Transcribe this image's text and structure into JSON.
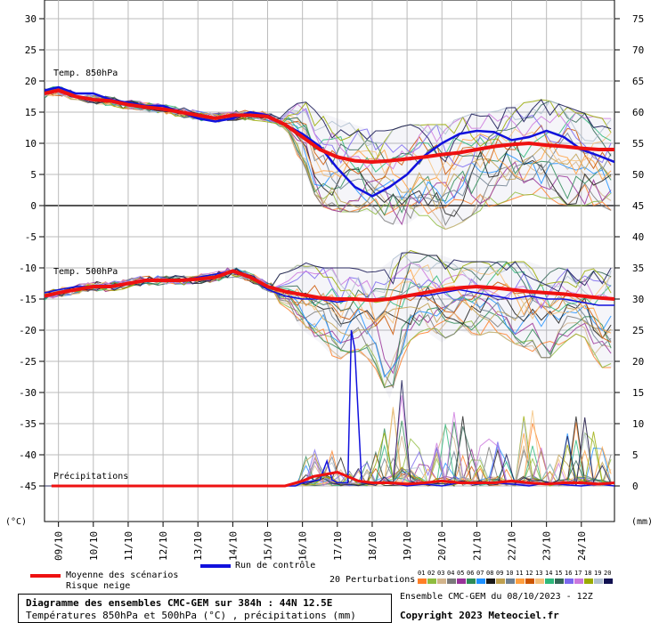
{
  "chart_data": {
    "type": "line",
    "title": "Diagramme des ensembles CMC-GEM sur 384h : 44N 12.5E",
    "subtitle": "Températures 850hPa et 500hPa (°C) , précipitations (mm)",
    "left_unit": "(°C)",
    "right_unit": "(mm)",
    "left_ticks": [
      30,
      25,
      20,
      15,
      10,
      5,
      0,
      -5,
      -10,
      -15,
      -20,
      -25,
      -30,
      -35,
      -40,
      -45
    ],
    "right_ticks": [
      75,
      70,
      65,
      60,
      55,
      50,
      45,
      40,
      35,
      30,
      25,
      20,
      15,
      10,
      5,
      0
    ],
    "x_ticks": [
      "09/10",
      "10/10",
      "11/10",
      "12/10",
      "13/10",
      "14/10",
      "15/10",
      "16/10",
      "17/10",
      "18/10",
      "19/10",
      "20/10",
      "21/10",
      "22/10",
      "23/10",
      "24/10"
    ],
    "x_range": [
      8.6,
      24.95
    ],
    "y_range": [
      -50,
      30
    ],
    "panel_labels": {
      "t850": "Temp. 850hPa",
      "t500": "Temp. 500hPa",
      "precip": "Précipitations"
    },
    "legend": {
      "mean": "Moyenne des scénarios",
      "snow": "Risque neige",
      "control": "Run de contrôle",
      "perturbations": "20 Perturbations",
      "perturbation_ids": [
        "01",
        "02",
        "03",
        "04",
        "05",
        "06",
        "07",
        "08",
        "09",
        "10",
        "11",
        "12",
        "13",
        "14",
        "15",
        "16",
        "17",
        "18",
        "19",
        "20"
      ]
    },
    "colors": {
      "mean": "#ee1111",
      "control": "#1111dd",
      "grid": "#bbbbbb",
      "zero_line": "#555555",
      "perturbations": [
        "#ff7f27",
        "#8fbc3f",
        "#d2b48c",
        "#7a7a7a",
        "#993399",
        "#2e8b57",
        "#1e90ff",
        "#1a1a1a",
        "#bfa050",
        "#708090",
        "#ffa040",
        "#cc5500",
        "#f4c07a",
        "#2db87a",
        "#336655",
        "#7b68ee",
        "#cc77dd",
        "#99aa00",
        "#b0c0d0",
        "#101050"
      ]
    },
    "series": [
      {
        "name": "Moyenne des scénarios",
        "t850": [
          [
            8.6,
            18
          ],
          [
            9,
            18.5
          ],
          [
            9.5,
            17.5
          ],
          [
            10,
            17
          ],
          [
            10.5,
            16.8
          ],
          [
            11,
            16.2
          ],
          [
            11.5,
            15.8
          ],
          [
            12,
            15.5
          ],
          [
            12.5,
            15
          ],
          [
            13,
            14.5
          ],
          [
            13.5,
            14
          ],
          [
            14,
            14.5
          ],
          [
            14.5,
            14.5
          ],
          [
            15,
            14.3
          ],
          [
            15.5,
            13
          ],
          [
            16,
            11
          ],
          [
            16.5,
            9
          ],
          [
            17,
            7.8
          ],
          [
            17.5,
            7.2
          ],
          [
            18,
            7
          ],
          [
            18.5,
            7.2
          ],
          [
            19,
            7.5
          ],
          [
            19.5,
            7.8
          ],
          [
            20,
            8.2
          ],
          [
            20.5,
            8.5
          ],
          [
            21,
            9
          ],
          [
            21.5,
            9.5
          ],
          [
            22,
            9.8
          ],
          [
            22.5,
            10
          ],
          [
            23,
            9.7
          ],
          [
            23.5,
            9.5
          ],
          [
            24,
            9.2
          ],
          [
            24.5,
            9
          ],
          [
            24.95,
            9
          ]
        ],
        "t500": [
          [
            8.6,
            -14.5
          ],
          [
            9,
            -14
          ],
          [
            9.5,
            -13.5
          ],
          [
            10,
            -13
          ],
          [
            10.5,
            -13
          ],
          [
            11,
            -12.5
          ],
          [
            11.5,
            -12
          ],
          [
            12,
            -12
          ],
          [
            12.5,
            -12
          ],
          [
            13,
            -11.8
          ],
          [
            13.5,
            -11.5
          ],
          [
            14,
            -10.5
          ],
          [
            14.5,
            -11.5
          ],
          [
            15,
            -13
          ],
          [
            15.5,
            -13.8
          ],
          [
            16,
            -14.3
          ],
          [
            16.5,
            -14.8
          ],
          [
            17,
            -15
          ],
          [
            17.5,
            -15
          ],
          [
            18,
            -15.2
          ],
          [
            18.5,
            -15
          ],
          [
            19,
            -14.5
          ],
          [
            19.5,
            -14
          ],
          [
            20,
            -13.5
          ],
          [
            20.5,
            -13.2
          ],
          [
            21,
            -13
          ],
          [
            21.5,
            -13.2
          ],
          [
            22,
            -13.5
          ],
          [
            22.5,
            -13.8
          ],
          [
            23,
            -14
          ],
          [
            23.5,
            -14.2
          ],
          [
            24,
            -14.5
          ],
          [
            24.5,
            -14.8
          ],
          [
            24.95,
            -15
          ]
        ],
        "precip_mm": [
          [
            8.8,
            0
          ],
          [
            15,
            0
          ],
          [
            15.5,
            0
          ],
          [
            16,
            0.8
          ],
          [
            16.3,
            1.5
          ],
          [
            16.6,
            1.8
          ],
          [
            17,
            2.2
          ],
          [
            17.3,
            1.5
          ],
          [
            17.6,
            0.8
          ],
          [
            18,
            0.5
          ],
          [
            18.5,
            0.5
          ],
          [
            19,
            0.3
          ],
          [
            19.5,
            0.5
          ],
          [
            20,
            0.8
          ],
          [
            20.5,
            0.5
          ],
          [
            21,
            0.5
          ],
          [
            21.5,
            0.5
          ],
          [
            22,
            0.8
          ],
          [
            22.5,
            0.5
          ],
          [
            23,
            0.3
          ],
          [
            23.5,
            0.5
          ],
          [
            24,
            0.5
          ],
          [
            24.5,
            0.3
          ],
          [
            24.95,
            0.5
          ]
        ]
      },
      {
        "name": "Run de contrôle",
        "t850": [
          [
            8.6,
            18.5
          ],
          [
            9,
            19
          ],
          [
            9.5,
            18
          ],
          [
            10,
            18
          ],
          [
            10.5,
            17
          ],
          [
            11,
            16.5
          ],
          [
            11.5,
            16
          ],
          [
            12,
            16
          ],
          [
            12.5,
            15
          ],
          [
            13,
            14
          ],
          [
            13.5,
            13.5
          ],
          [
            14,
            14
          ],
          [
            14.5,
            15
          ],
          [
            15,
            14.5
          ],
          [
            15.5,
            13
          ],
          [
            16,
            11.5
          ],
          [
            16.5,
            9.5
          ],
          [
            17,
            6
          ],
          [
            17.5,
            3
          ],
          [
            18,
            1.5
          ],
          [
            18.5,
            3
          ],
          [
            19,
            5
          ],
          [
            19.5,
            8
          ],
          [
            20,
            10
          ],
          [
            20.5,
            11.5
          ],
          [
            21,
            12
          ],
          [
            21.5,
            11.8
          ],
          [
            22,
            10.5
          ],
          [
            22.5,
            11
          ],
          [
            23,
            12
          ],
          [
            23.5,
            11
          ],
          [
            24,
            9
          ],
          [
            24.5,
            8
          ],
          [
            24.95,
            7
          ]
        ],
        "t500": [
          [
            8.6,
            -14
          ],
          [
            9,
            -13.5
          ],
          [
            9.5,
            -13
          ],
          [
            10,
            -13
          ],
          [
            10.5,
            -13
          ],
          [
            11,
            -12.5
          ],
          [
            11.5,
            -12
          ],
          [
            12,
            -12
          ],
          [
            12.5,
            -12
          ],
          [
            13,
            -11.5
          ],
          [
            13.5,
            -11
          ],
          [
            14,
            -10.5
          ],
          [
            14.5,
            -11.5
          ],
          [
            15,
            -13.5
          ],
          [
            15.5,
            -14.5
          ],
          [
            16,
            -15
          ],
          [
            16.5,
            -15
          ],
          [
            17,
            -15.5
          ],
          [
            17.5,
            -15
          ],
          [
            18,
            -15
          ],
          [
            18.5,
            -15
          ],
          [
            19,
            -14.5
          ],
          [
            19.5,
            -14.5
          ],
          [
            20,
            -14
          ],
          [
            20.5,
            -13.5
          ],
          [
            21,
            -14
          ],
          [
            21.5,
            -14.5
          ],
          [
            22,
            -15
          ],
          [
            22.5,
            -14.5
          ],
          [
            23,
            -15
          ],
          [
            23.5,
            -15
          ],
          [
            24,
            -15.5
          ],
          [
            24.5,
            -16
          ],
          [
            24.95,
            -16
          ]
        ],
        "precip_mm": [
          [
            15,
            0
          ],
          [
            15.8,
            0
          ],
          [
            16,
            0.5
          ],
          [
            16.5,
            1
          ],
          [
            16.7,
            4
          ],
          [
            16.85,
            1
          ],
          [
            17,
            0.5
          ],
          [
            17.3,
            0.5
          ],
          [
            17.4,
            25
          ],
          [
            17.5,
            22
          ],
          [
            17.7,
            0.5
          ],
          [
            18,
            0.5
          ],
          [
            18.5,
            0.5
          ],
          [
            19,
            0
          ],
          [
            19.5,
            0.3
          ],
          [
            20,
            0
          ],
          [
            20.5,
            0.5
          ],
          [
            21,
            0.3
          ],
          [
            21.5,
            0.5
          ],
          [
            22,
            0.3
          ],
          [
            22.5,
            0
          ],
          [
            23,
            0.5
          ],
          [
            23.5,
            0.2
          ],
          [
            24,
            0
          ],
          [
            24.5,
            0.3
          ],
          [
            24.95,
            0
          ]
        ]
      }
    ],
    "perturbation_envelopes": {
      "t850_min": [
        [
          15.5,
          13
        ],
        [
          16,
          6
        ],
        [
          16.5,
          0
        ],
        [
          17,
          -1
        ],
        [
          17.5,
          -1
        ],
        [
          18,
          -1
        ],
        [
          18.5,
          -3
        ],
        [
          19,
          -3
        ],
        [
          19.5,
          -1
        ],
        [
          20,
          -4
        ],
        [
          20.5,
          -3
        ],
        [
          21,
          -1
        ],
        [
          21.5,
          0
        ],
        [
          22,
          1
        ],
        [
          22.5,
          2
        ],
        [
          23,
          1
        ],
        [
          23.5,
          0
        ],
        [
          24,
          0
        ],
        [
          24.5,
          0
        ],
        [
          24.95,
          -1
        ]
      ],
      "t850_max": [
        [
          15.5,
          15
        ],
        [
          16,
          17
        ],
        [
          16.5,
          15
        ],
        [
          17,
          14
        ],
        [
          17.5,
          13
        ],
        [
          18,
          12
        ],
        [
          18.5,
          12
        ],
        [
          19,
          13
        ],
        [
          19.5,
          13
        ],
        [
          20,
          13
        ],
        [
          20.5,
          14
        ],
        [
          21,
          15
        ],
        [
          21.5,
          15
        ],
        [
          22,
          16
        ],
        [
          22.5,
          17
        ],
        [
          23,
          17
        ],
        [
          23.5,
          16
        ],
        [
          24,
          15
        ],
        [
          24.5,
          14
        ],
        [
          24.95,
          14
        ]
      ],
      "t500_min": [
        [
          15.5,
          -16
        ],
        [
          16,
          -20
        ],
        [
          16.5,
          -22
        ],
        [
          17,
          -25
        ],
        [
          17.5,
          -23
        ],
        [
          18,
          -25
        ],
        [
          18.5,
          -31
        ],
        [
          19,
          -22
        ],
        [
          19.5,
          -20
        ],
        [
          20,
          -22
        ],
        [
          20.5,
          -20
        ],
        [
          21,
          -21
        ],
        [
          21.5,
          -20
        ],
        [
          22,
          -22
        ],
        [
          22.5,
          -23
        ],
        [
          23,
          -25
        ],
        [
          23.5,
          -22
        ],
        [
          24,
          -20
        ],
        [
          24.5,
          -26
        ],
        [
          24.95,
          -26
        ]
      ],
      "t500_max": [
        [
          15.5,
          -11
        ],
        [
          16,
          -9
        ],
        [
          16.5,
          -10
        ],
        [
          17,
          -10
        ],
        [
          17.5,
          -10
        ],
        [
          18,
          -11
        ],
        [
          18.5,
          -9
        ],
        [
          19,
          -7
        ],
        [
          19.5,
          -8
        ],
        [
          20,
          -8
        ],
        [
          20.5,
          -9
        ],
        [
          21,
          -9
        ],
        [
          21.5,
          -9
        ],
        [
          22,
          -9
        ],
        [
          22.5,
          -9
        ],
        [
          23,
          -10
        ],
        [
          23.5,
          -10
        ],
        [
          24,
          -10
        ],
        [
          24.5,
          -10
        ],
        [
          24.95,
          -10
        ]
      ],
      "precip_max_mm": [
        [
          15.5,
          0
        ],
        [
          16,
          7
        ],
        [
          16.3,
          2
        ],
        [
          16.5,
          21
        ],
        [
          17,
          5
        ],
        [
          17.5,
          3
        ],
        [
          18,
          5
        ],
        [
          18.5,
          12
        ],
        [
          19,
          25
        ],
        [
          19.5,
          3
        ],
        [
          20,
          10
        ],
        [
          20.5,
          13
        ],
        [
          21,
          5
        ],
        [
          21.5,
          12
        ],
        [
          22,
          3
        ],
        [
          22.5,
          15
        ],
        [
          23,
          3
        ],
        [
          23.5,
          8
        ],
        [
          24,
          13
        ],
        [
          24.5,
          7
        ],
        [
          24.95,
          5
        ]
      ]
    }
  },
  "footer": {
    "ensemble_line": "Ensemble CMC-GEM du 08/10/2023 - 12Z",
    "copyright": "Copyright 2023 Meteociel.fr"
  }
}
